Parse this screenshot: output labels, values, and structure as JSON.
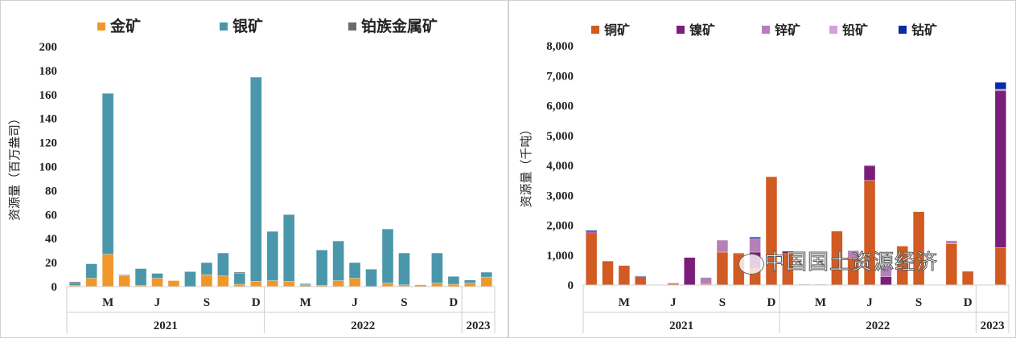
{
  "chart_data": [
    {
      "type": "bar",
      "stacked": true,
      "ylabel": "资源量（百万盎司）",
      "ylim": [
        0,
        200
      ],
      "yticks": [
        0,
        20,
        40,
        60,
        80,
        100,
        120,
        140,
        160,
        180,
        200
      ],
      "ytick_labels": [
        "0",
        "20",
        "40",
        "60",
        "80",
        "100",
        "120",
        "140",
        "160",
        "180",
        "200"
      ],
      "legend_position": "top",
      "grid": false,
      "categories": [
        "2021-01",
        "2021-02",
        "2021-03",
        "2021-04",
        "2021-05",
        "2021-06",
        "2021-07",
        "2021-08",
        "2021-09",
        "2021-10",
        "2021-11",
        "2021-12",
        "2022-01",
        "2022-02",
        "2022-03",
        "2022-04",
        "2022-05",
        "2022-06",
        "2022-07",
        "2022-08",
        "2022-09",
        "2022-10",
        "2022-11",
        "2022-12",
        "2023-01",
        "2023-02"
      ],
      "month_labels": [
        {
          "index": 2,
          "label": "M"
        },
        {
          "index": 5,
          "label": "J"
        },
        {
          "index": 8,
          "label": "S"
        },
        {
          "index": 11,
          "label": "D"
        },
        {
          "index": 14,
          "label": "M"
        },
        {
          "index": 17,
          "label": "J"
        },
        {
          "index": 20,
          "label": "S"
        },
        {
          "index": 23,
          "label": "D"
        }
      ],
      "year_groups": [
        {
          "label": "2021",
          "count": 12
        },
        {
          "label": "2022",
          "count": 12
        },
        {
          "label": "2023",
          "count": 2
        }
      ],
      "series": [
        {
          "name": "金矿",
          "color": "#F0972A",
          "values": [
            1,
            7,
            27,
            9,
            1,
            7,
            5,
            0,
            10,
            9,
            2,
            4.5,
            5,
            4.5,
            1.5,
            1,
            5,
            7,
            0,
            3,
            1.5,
            1.5,
            3,
            2,
            3,
            8
          ]
        },
        {
          "name": "银矿",
          "color": "#4A97AB",
          "values": [
            2,
            12,
            134,
            0.5,
            14,
            4,
            0,
            12.5,
            10,
            19,
            9,
            170,
            41,
            55.5,
            1,
            29.5,
            33,
            13,
            14.5,
            45,
            26.5,
            0,
            25,
            6.5,
            2.5,
            4
          ]
        },
        {
          "name": "铂族金属矿",
          "color": "#6B6B6B",
          "values": [
            1,
            0,
            0,
            0.5,
            0,
            0,
            0,
            0,
            0,
            0,
            1,
            0,
            0,
            0,
            0,
            0,
            0,
            0,
            0,
            0,
            0,
            0,
            0,
            0,
            0,
            0
          ]
        }
      ]
    },
    {
      "type": "bar",
      "stacked": true,
      "ylabel": "资源量（千吨）",
      "ylim": [
        0,
        8000
      ],
      "yticks": [
        0,
        1000,
        2000,
        3000,
        4000,
        5000,
        6000,
        7000,
        8000
      ],
      "ytick_labels": [
        "0",
        "1,000",
        "2,000",
        "3,000",
        "4,000",
        "5,000",
        "6,000",
        "7,000",
        "8,000"
      ],
      "legend_position": "top",
      "grid": false,
      "categories": [
        "2021-01",
        "2021-02",
        "2021-03",
        "2021-04",
        "2021-05",
        "2021-06",
        "2021-07",
        "2021-08",
        "2021-09",
        "2021-10",
        "2021-11",
        "2021-12",
        "2022-01",
        "2022-02",
        "2022-03",
        "2022-04",
        "2022-05",
        "2022-06",
        "2022-07",
        "2022-08",
        "2022-09",
        "2022-10",
        "2022-11",
        "2022-12",
        "2023-01",
        "2023-02"
      ],
      "month_labels": [
        {
          "index": 2,
          "label": "M"
        },
        {
          "index": 5,
          "label": "J"
        },
        {
          "index": 8,
          "label": "S"
        },
        {
          "index": 11,
          "label": "D"
        },
        {
          "index": 14,
          "label": "M"
        },
        {
          "index": 17,
          "label": "J"
        },
        {
          "index": 20,
          "label": "S"
        },
        {
          "index": 23,
          "label": "D"
        }
      ],
      "year_groups": [
        {
          "label": "2021",
          "count": 12
        },
        {
          "label": "2022",
          "count": 12
        },
        {
          "label": "2023",
          "count": 2
        }
      ],
      "series": [
        {
          "name": "铜矿",
          "color": "#D15B22",
          "values": [
            1750,
            800,
            650,
            280,
            0,
            50,
            0,
            30,
            1100,
            1050,
            550,
            3620,
            1050,
            0,
            0,
            1800,
            900,
            3500,
            0,
            1300,
            2450,
            0,
            1380,
            450,
            0,
            1250
          ]
        },
        {
          "name": "镍矿",
          "color": "#7B1E7A",
          "values": [
            50,
            0,
            0,
            0,
            0,
            0,
            920,
            0,
            0,
            20,
            550,
            0,
            80,
            0,
            20,
            0,
            0,
            480,
            280,
            0,
            0,
            0,
            0,
            0,
            0,
            5250
          ]
        },
        {
          "name": "锌矿",
          "color": "#B580B8",
          "values": [
            0,
            0,
            0,
            0,
            0,
            0,
            0,
            220,
            400,
            0,
            450,
            0,
            0,
            0,
            0,
            0,
            250,
            0,
            350,
            0,
            0,
            0,
            100,
            0,
            0,
            50
          ]
        },
        {
          "name": "铅矿",
          "color": "#CFA3D6",
          "values": [
            0,
            0,
            0,
            0,
            0,
            30,
            0,
            0,
            0,
            0,
            0,
            0,
            0,
            30,
            0,
            0,
            0,
            0,
            0,
            0,
            0,
            0,
            0,
            0,
            0,
            0
          ]
        },
        {
          "name": "钴矿",
          "color": "#0A2AA8",
          "values": [
            30,
            0,
            0,
            20,
            0,
            0,
            0,
            0,
            0,
            0,
            50,
            0,
            0,
            0,
            0,
            0,
            0,
            20,
            20,
            0,
            0,
            0,
            0,
            10,
            0,
            230
          ]
        }
      ]
    }
  ],
  "watermark": "中国国土资源经济"
}
